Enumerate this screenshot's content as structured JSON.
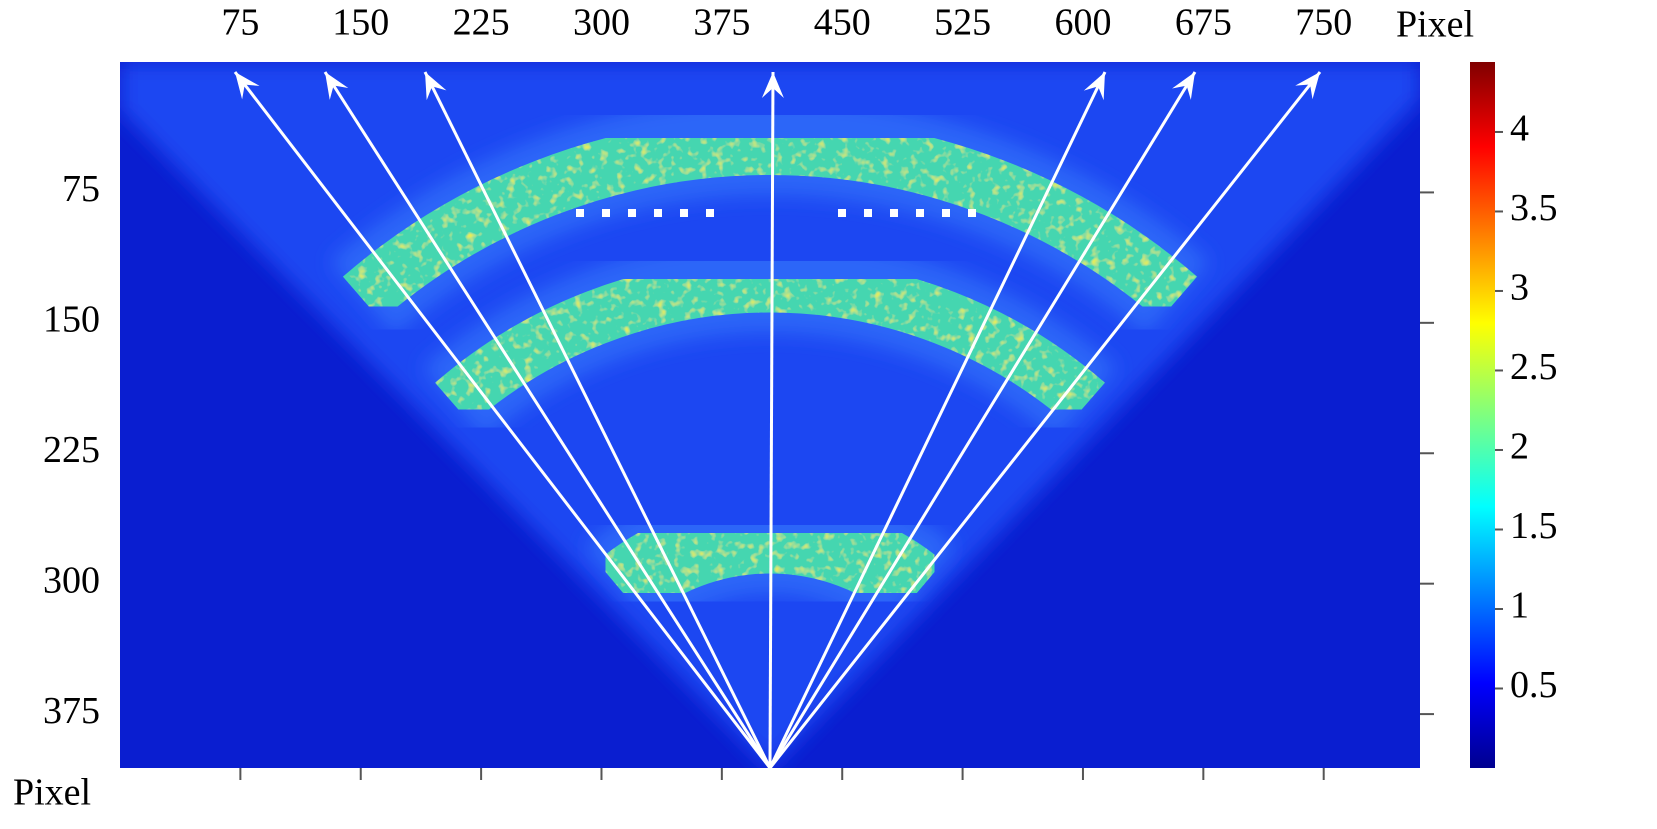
{
  "chart_data": {
    "type": "heatmap",
    "x_label": "Pixel",
    "y_label": "Pixel",
    "xlim": [
      0,
      810
    ],
    "xticks": [
      75,
      150,
      225,
      300,
      375,
      450,
      525,
      600,
      675,
      750
    ],
    "ylim": [
      0,
      406
    ],
    "y_inverted": true,
    "yticks": [
      75,
      150,
      225,
      300,
      375
    ],
    "colorbar": {
      "lim": [
        0,
        4.44
      ],
      "ticks": [
        0.5,
        1,
        1.5,
        2,
        2.5,
        3,
        3.5,
        4
      ]
    }
  }
}
